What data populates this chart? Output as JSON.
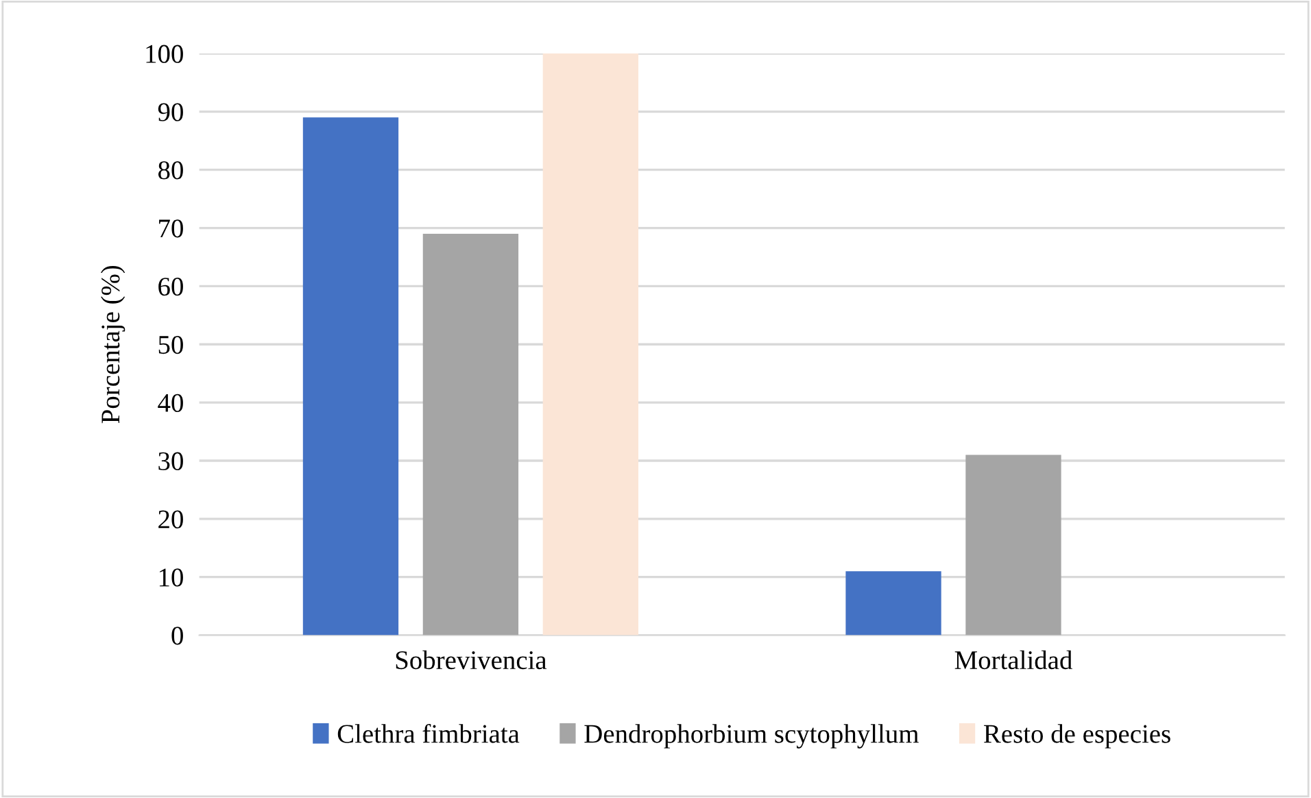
{
  "chart_data": {
    "type": "bar",
    "ylabel": "Porcentaje (%)",
    "categories": [
      "Sobrevivencia",
      "Mortalidad"
    ],
    "series": [
      {
        "name": "Clethra fimbriata",
        "color": "#4472c4",
        "values": [
          89,
          11
        ]
      },
      {
        "name": "Dendrophorbium scytophyllum",
        "color": "#a5a5a5",
        "values": [
          69,
          31
        ]
      },
      {
        "name": "Resto de especies",
        "color": "#fbe5d6",
        "values": [
          100,
          0
        ]
      }
    ],
    "ylim": [
      0,
      100
    ],
    "yticks": [
      0,
      10,
      20,
      30,
      40,
      50,
      60,
      70,
      80,
      90,
      100
    ],
    "grid": "y",
    "legend": "bottom"
  }
}
